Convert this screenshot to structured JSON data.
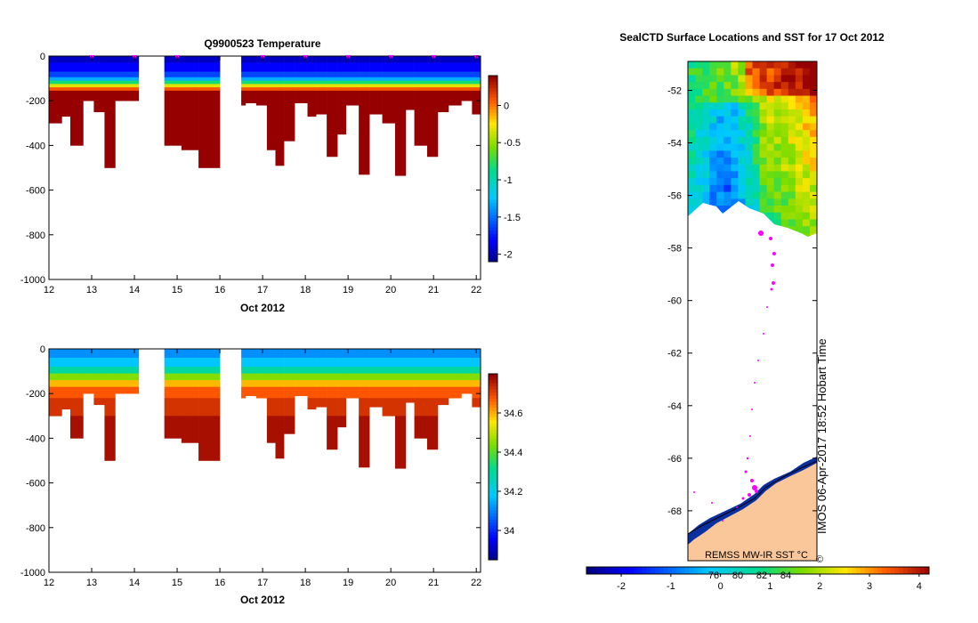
{
  "page_title_left": "Q9900523  Temperature",
  "page_title_right": "SealCTD Surface Locations and SST for 17 Oct 2012",
  "chart_data": [
    {
      "type": "heatmap",
      "name": "temperature-section",
      "title": "Q9900523  Temperature",
      "xlabel": "Oct 2012",
      "ylabel": "",
      "xlim": [
        12,
        22.1
      ],
      "ylim": [
        -1000,
        0
      ],
      "xticks": [
        "12",
        "13",
        "14",
        "15",
        "16",
        "17",
        "18",
        "19",
        "20",
        "21",
        "22"
      ],
      "yticks": [
        "0",
        "-200",
        "-400",
        "-600",
        "-800",
        "-1000"
      ],
      "colorbar": {
        "min": -2.1,
        "max": 0.4,
        "ticks": [
          "0",
          "-0.5",
          "-1",
          "-1.5",
          "-2"
        ],
        "tick_values": [
          0,
          -0.5,
          -1,
          -1.5,
          -2
        ]
      },
      "profile_markers_x": [
        13,
        14,
        15,
        17,
        18,
        19,
        20,
        21,
        22
      ],
      "profiles": [
        {
          "x0": 12.0,
          "x1": 12.3,
          "depth": 300
        },
        {
          "x0": 12.3,
          "x1": 12.5,
          "depth": 270
        },
        {
          "x0": 12.5,
          "x1": 12.8,
          "depth": 400
        },
        {
          "x0": 12.8,
          "x1": 13.05,
          "depth": 200
        },
        {
          "x0": 13.05,
          "x1": 13.3,
          "depth": 250
        },
        {
          "x0": 13.3,
          "x1": 13.55,
          "depth": 500
        },
        {
          "x0": 13.55,
          "x1": 14.1,
          "depth": 200
        },
        {
          "x0": 14.7,
          "x1": 15.1,
          "depth": 400
        },
        {
          "x0": 15.1,
          "x1": 15.5,
          "depth": 420
        },
        {
          "x0": 15.5,
          "x1": 16.0,
          "depth": 500
        },
        {
          "x0": 16.5,
          "x1": 16.6,
          "depth": 220
        },
        {
          "x0": 16.6,
          "x1": 16.85,
          "depth": 210
        },
        {
          "x0": 16.85,
          "x1": 17.1,
          "depth": 220
        },
        {
          "x0": 17.1,
          "x1": 17.3,
          "depth": 420
        },
        {
          "x0": 17.3,
          "x1": 17.5,
          "depth": 490
        },
        {
          "x0": 17.5,
          "x1": 17.75,
          "depth": 380
        },
        {
          "x0": 17.75,
          "x1": 18.05,
          "depth": 210
        },
        {
          "x0": 18.05,
          "x1": 18.25,
          "depth": 270
        },
        {
          "x0": 18.25,
          "x1": 18.5,
          "depth": 260
        },
        {
          "x0": 18.5,
          "x1": 18.75,
          "depth": 450
        },
        {
          "x0": 18.75,
          "x1": 18.95,
          "depth": 350
        },
        {
          "x0": 18.95,
          "x1": 19.25,
          "depth": 220
        },
        {
          "x0": 19.25,
          "x1": 19.5,
          "depth": 530
        },
        {
          "x0": 19.5,
          "x1": 19.8,
          "depth": 260
        },
        {
          "x0": 19.8,
          "x1": 20.1,
          "depth": 300
        },
        {
          "x0": 20.1,
          "x1": 20.35,
          "depth": 535
        },
        {
          "x0": 20.35,
          "x1": 20.55,
          "depth": 240
        },
        {
          "x0": 20.55,
          "x1": 20.85,
          "depth": 400
        },
        {
          "x0": 20.85,
          "x1": 21.1,
          "depth": 450
        },
        {
          "x0": 21.1,
          "x1": 21.35,
          "depth": 250
        },
        {
          "x0": 21.35,
          "x1": 21.65,
          "depth": 220
        },
        {
          "x0": 21.65,
          "x1": 21.9,
          "depth": 200
        },
        {
          "x0": 21.9,
          "x1": 22.1,
          "depth": 260
        }
      ],
      "layers": [
        {
          "from": 0,
          "to": 30,
          "value": -1.95
        },
        {
          "from": 30,
          "to": 70,
          "value": -1.8
        },
        {
          "from": 70,
          "to": 95,
          "value": -1.6
        },
        {
          "from": 95,
          "to": 110,
          "value": -1.3
        },
        {
          "from": 110,
          "to": 125,
          "value": -0.8
        },
        {
          "from": 125,
          "to": 140,
          "value": -0.3
        },
        {
          "from": 140,
          "to": 155,
          "value": 0.1
        },
        {
          "from": 155,
          "to": 1000,
          "value": 0.4
        }
      ]
    },
    {
      "type": "heatmap",
      "name": "salinity-section",
      "title": "",
      "xlabel": "Oct 2012",
      "ylabel": "",
      "xlim": [
        12,
        22.1
      ],
      "ylim": [
        -1000,
        0
      ],
      "xticks": [
        "12",
        "13",
        "14",
        "15",
        "16",
        "17",
        "18",
        "19",
        "20",
        "21",
        "22"
      ],
      "yticks": [
        "0",
        "-200",
        "-400",
        "-600",
        "-800",
        "-1000"
      ],
      "colorbar": {
        "min": 33.85,
        "max": 34.8,
        "ticks": [
          "34.6",
          "34.4",
          "34.2",
          "34"
        ],
        "tick_values": [
          34.6,
          34.4,
          34.2,
          34.0
        ]
      },
      "layers": [
        {
          "from": 0,
          "to": 40,
          "value": 34.12
        },
        {
          "from": 40,
          "to": 80,
          "value": 34.18
        },
        {
          "from": 80,
          "to": 110,
          "value": 34.3
        },
        {
          "from": 110,
          "to": 140,
          "value": 34.45
        },
        {
          "from": 140,
          "to": 170,
          "value": 34.6
        },
        {
          "from": 170,
          "to": 220,
          "value": 34.68
        },
        {
          "from": 220,
          "to": 300,
          "value": 34.73
        },
        {
          "from": 300,
          "to": 1000,
          "value": 34.78
        }
      ]
    },
    {
      "type": "heatmap",
      "name": "sst-map",
      "title": "SealCTD Surface Locations and SST for 17 Oct 2012",
      "xlabel": "",
      "ylabel": "",
      "ylim": [
        -69.9,
        -50.9
      ],
      "yticks": [
        "-52",
        "-54",
        "-56",
        "-58",
        "-60",
        "-62",
        "-64",
        "-66",
        "-68"
      ],
      "colorbar": {
        "label": "REMSS MW-IR SST °C",
        "min": -2.7,
        "max": 4.2,
        "ticks": [
          "-2",
          "-1",
          "0",
          "1",
          "2",
          "3",
          "4"
        ],
        "tick_values": [
          -2,
          -1,
          0,
          1,
          2,
          3,
          4
        ],
        "inner_ticks": [
          "76",
          "80",
          "82",
          "84"
        ]
      },
      "side_label": "IMOS 06-Apr-2017 18:52 Hobart Time",
      "copyright": "©"
    }
  ]
}
